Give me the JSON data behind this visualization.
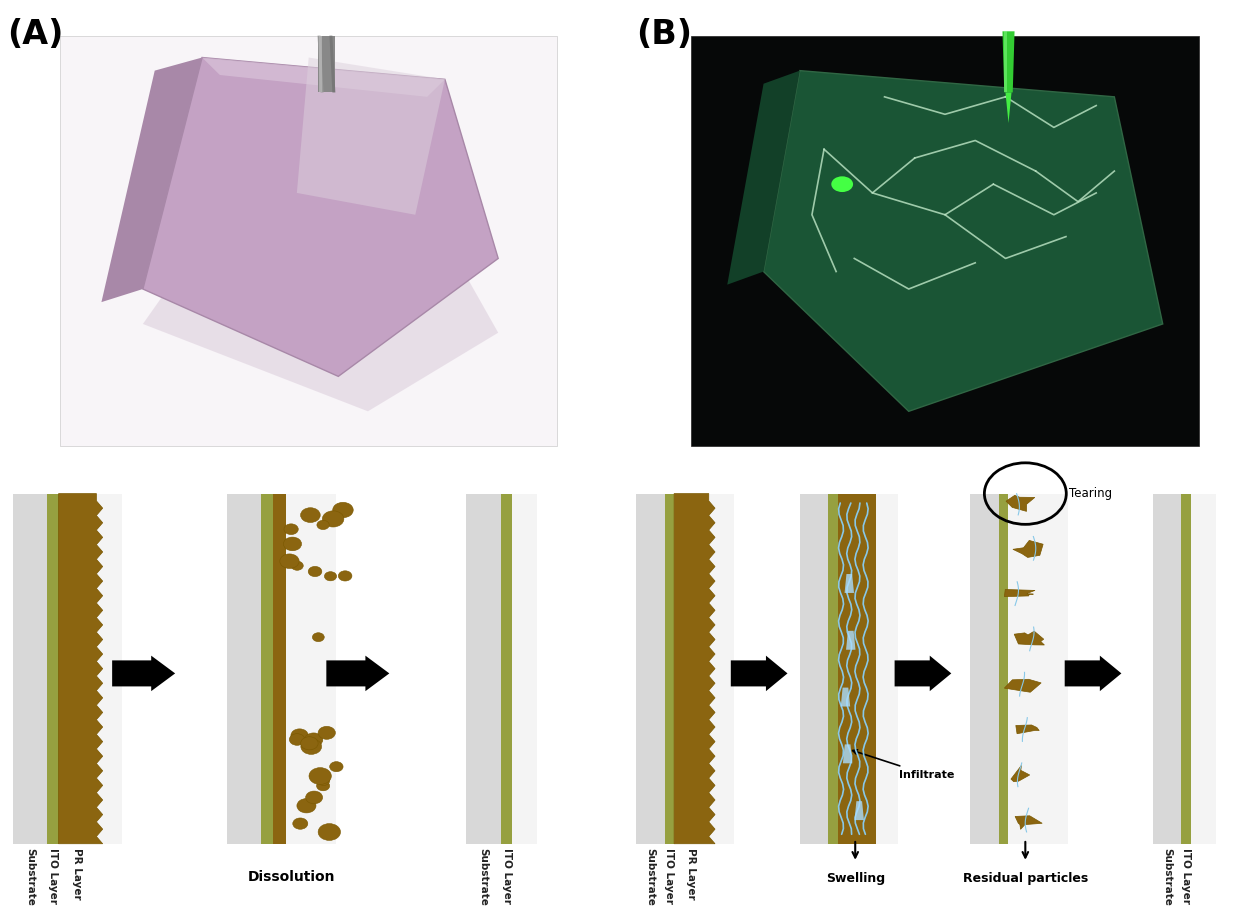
{
  "title_A": "(A)",
  "title_B": "(B)",
  "bg_color": "#ffffff",
  "substrate_color": "#e0e0e0",
  "ito_color": "#96a040",
  "pr_color": "#8B6510",
  "arrow_color": "#000000",
  "dissolution_label": "Dissolution",
  "swelling_label": "Swelling",
  "infiltrate_label": "Infiltrate",
  "tearing_label": "Tearing",
  "residual_label": "Residual particles",
  "photo_A_bg": "#f2eef2",
  "photo_A_pink": "#c8a8c8",
  "photo_A_light": "#d8c0d8",
  "photo_B_bg": "#050505",
  "photo_B_green": "#1a5535",
  "photo_B_green_light": "#2a7a50"
}
